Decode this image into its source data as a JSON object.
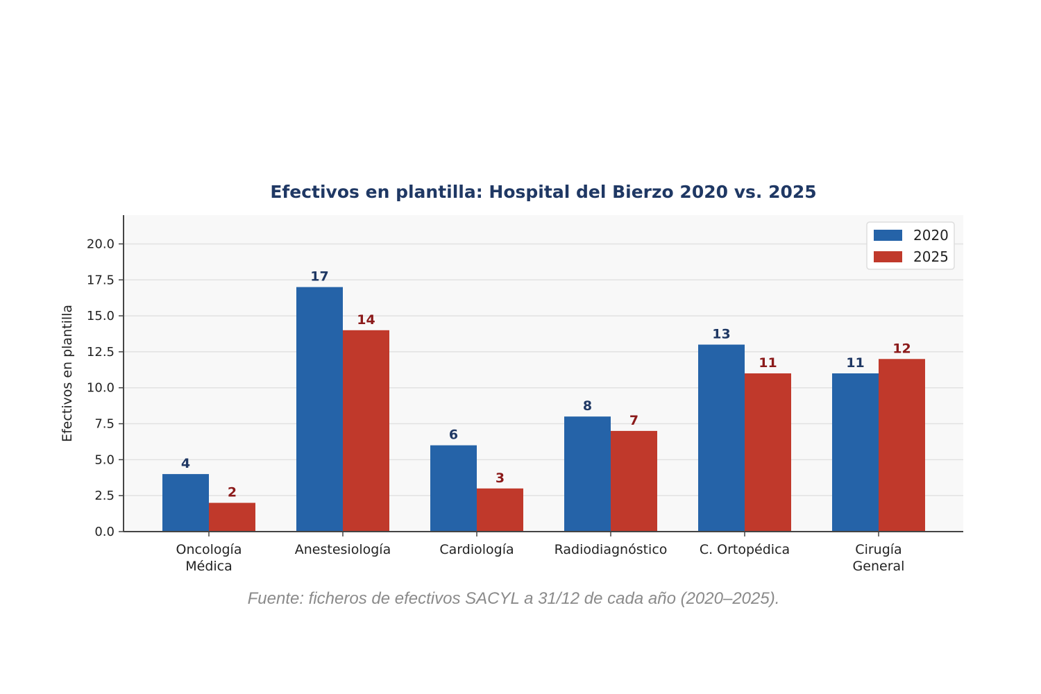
{
  "chart_data": {
    "type": "bar",
    "title": "Efectivos en plantilla: Hospital del Bierzo  2020 vs. 2025",
    "ylabel": "Efectivos en plantilla",
    "xlabel": "",
    "ylim": [
      0,
      22
    ],
    "yticks": [
      "0.0",
      "2.5",
      "5.0",
      "7.5",
      "10.0",
      "12.5",
      "15.0",
      "17.5",
      "20.0"
    ],
    "categories": [
      [
        "Oncología",
        "Médica"
      ],
      [
        "Anestesiología"
      ],
      [
        "Cardiología"
      ],
      [
        "Radiodiagnóstico"
      ],
      [
        "C. Ortopédica"
      ],
      [
        "Cirugía",
        "General"
      ]
    ],
    "series": [
      {
        "name": "2020",
        "values": [
          4,
          17,
          6,
          8,
          13,
          11
        ],
        "color": "#2563a8",
        "label_color": "#1f3864"
      },
      {
        "name": "2025",
        "values": [
          2,
          14,
          3,
          7,
          11,
          12
        ],
        "color": "#c0392b",
        "label_color": "#8b1a1a"
      }
    ],
    "grid": "horizontal",
    "legend_position": "top-right",
    "source": "Fuente: ficheros de efectivos SACYL a 31/12 de cada año (2020–2025)."
  }
}
